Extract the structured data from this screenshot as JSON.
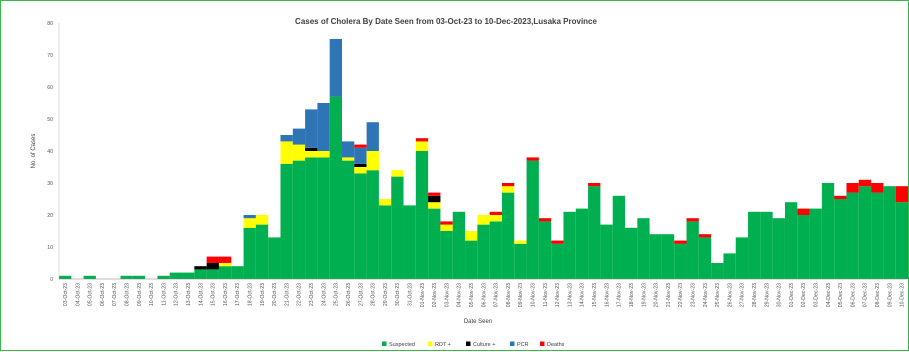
{
  "chart_data": {
    "type": "bar",
    "stacked": true,
    "title": "Cases of Cholera By Date Seen from 03-Oct-23 to 10-Dec-2023,Lusaka Province",
    "xlabel": "Date Seen",
    "ylabel": "No. of Cases",
    "ylim": [
      0,
      80
    ],
    "yticks": [
      0,
      10,
      20,
      30,
      40,
      50,
      60,
      70,
      80
    ],
    "legend_position": "bottom",
    "grid": false,
    "categories": [
      "03-Oct-23",
      "04-Oct-23",
      "05-Oct-23",
      "06-Oct-23",
      "07-Oct-23",
      "08-Oct-23",
      "09-Oct-23",
      "10-Oct-23",
      "11-Oct-23",
      "12-Oct-23",
      "13-Oct-23",
      "14-Oct-23",
      "15-Oct-23",
      "16-Oct-23",
      "17-Oct-23",
      "18-Oct-23",
      "19-Oct-23",
      "20-Oct-23",
      "21-Oct-23",
      "22-Oct-23",
      "23-Oct-23",
      "24-Oct-23",
      "25-Oct-23",
      "26-Oct-23",
      "27-Oct-23",
      "28-Oct-23",
      "29-Oct-23",
      "30-Oct-23",
      "31-Oct-23",
      "01-Nov-23",
      "02-Nov-23",
      "03-Nov-23",
      "04-Nov-23",
      "05-Nov-23",
      "06-Nov-23",
      "07-Nov-23",
      "08-Nov-23",
      "09-Nov-23",
      "10-Nov-23",
      "11-Nov-23",
      "12-Nov-23",
      "13-Nov-23",
      "14-Nov-23",
      "15-Nov-23",
      "16-Nov-23",
      "17-Nov-23",
      "18-Nov-23",
      "19-Nov-23",
      "20-Nov-23",
      "21-Nov-23",
      "22-Nov-23",
      "23-Nov-23",
      "24-Nov-23",
      "25-Nov-23",
      "26-Nov-23",
      "27-Nov-23",
      "28-Nov-23",
      "29-Nov-23",
      "30-Nov-23",
      "01-Dec-23",
      "02-Dec-23",
      "03-Dec-23",
      "04-Dec-23",
      "05-Dec-23",
      "06-Dec-23",
      "07-Dec-23",
      "08-Dec-23",
      "09-Dec-23",
      "10-Dec-23"
    ],
    "series": [
      {
        "name": "Suspected",
        "color": "#00b050",
        "values": [
          1,
          0,
          1,
          0,
          0,
          1,
          1,
          0,
          1,
          2,
          2,
          3,
          3,
          4,
          4,
          16,
          17,
          13,
          36,
          37,
          38,
          38,
          57,
          37,
          33,
          34,
          23,
          32,
          23,
          40,
          22,
          15,
          21,
          12,
          17,
          18,
          27,
          11,
          37,
          18,
          11,
          21,
          22,
          29,
          17,
          26,
          16,
          19,
          14,
          14,
          11,
          18,
          13,
          5,
          8,
          13,
          21,
          21,
          19,
          24,
          20,
          22,
          30,
          25,
          27,
          29,
          27,
          29,
          24
        ]
      },
      {
        "name": "RDT +",
        "color": "#ffff00",
        "values": [
          0,
          0,
          0,
          0,
          0,
          0,
          0,
          0,
          0,
          0,
          0,
          0,
          0,
          1,
          0,
          3,
          3,
          0,
          7,
          5,
          2,
          2,
          0,
          1,
          2,
          6,
          2,
          2,
          0,
          3,
          2,
          2,
          0,
          3,
          3,
          2,
          2,
          1,
          0,
          0,
          0,
          0,
          0,
          0,
          0,
          0,
          0,
          0,
          0,
          0,
          0,
          0,
          0,
          0,
          0,
          0,
          0,
          0,
          0,
          0,
          0,
          0,
          0,
          0,
          0,
          0,
          0,
          0,
          0
        ]
      },
      {
        "name": "Culture +",
        "color": "#000000",
        "values": [
          0,
          0,
          0,
          0,
          0,
          0,
          0,
          0,
          0,
          0,
          0,
          1,
          2,
          0,
          0,
          0,
          0,
          0,
          0,
          0,
          1,
          0,
          0,
          0,
          1,
          0,
          0,
          0,
          0,
          0,
          2,
          0,
          0,
          0,
          0,
          0,
          0,
          0,
          0,
          0,
          0,
          0,
          0,
          0,
          0,
          0,
          0,
          0,
          0,
          0,
          0,
          0,
          0,
          0,
          0,
          0,
          0,
          0,
          0,
          0,
          0,
          0,
          0,
          0,
          0,
          0,
          0,
          0,
          0
        ]
      },
      {
        "name": "PCR",
        "color": "#2e75b6",
        "values": [
          0,
          0,
          0,
          0,
          0,
          0,
          0,
          0,
          0,
          0,
          0,
          0,
          0,
          0,
          0,
          1,
          0,
          0,
          2,
          5,
          12,
          15,
          18,
          5,
          5,
          9,
          0,
          0,
          0,
          0,
          0,
          0,
          0,
          0,
          0,
          0,
          0,
          0,
          0,
          0,
          0,
          0,
          0,
          0,
          0,
          0,
          0,
          0,
          0,
          0,
          0,
          0,
          0,
          0,
          0,
          0,
          0,
          0,
          0,
          0,
          0,
          0,
          0,
          0,
          0,
          0,
          0,
          0,
          0
        ]
      },
      {
        "name": "Deaths",
        "color": "#ff0000",
        "values": [
          0,
          0,
          0,
          0,
          0,
          0,
          0,
          0,
          0,
          0,
          0,
          0,
          2,
          2,
          0,
          0,
          0,
          0,
          0,
          0,
          0,
          0,
          0,
          0,
          1,
          0,
          0,
          0,
          0,
          1,
          1,
          1,
          0,
          0,
          0,
          1,
          1,
          0,
          1,
          1,
          1,
          0,
          0,
          1,
          0,
          0,
          0,
          0,
          0,
          0,
          1,
          1,
          1,
          0,
          0,
          0,
          0,
          0,
          0,
          0,
          2,
          0,
          0,
          1,
          3,
          2,
          3,
          0,
          5
        ]
      }
    ]
  }
}
